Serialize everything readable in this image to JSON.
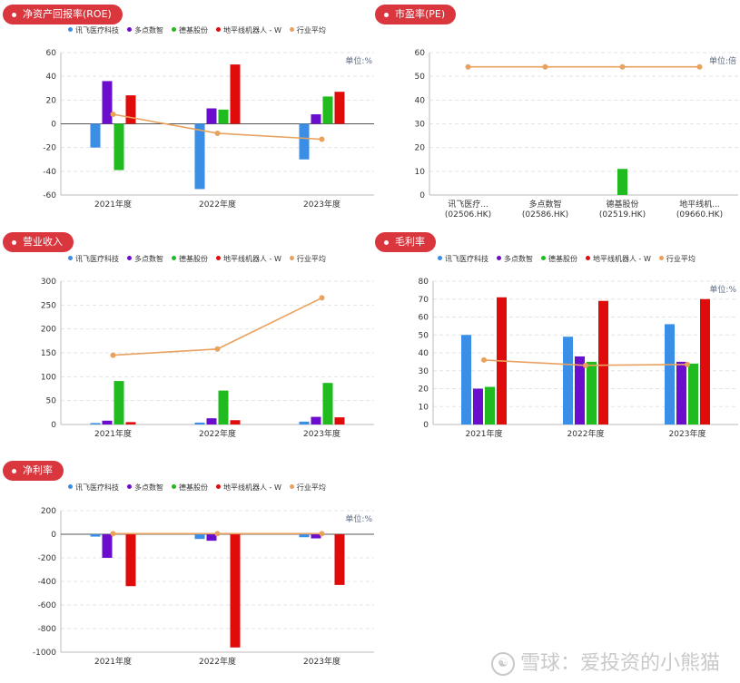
{
  "legend_names": [
    "讯飞医疗科技",
    "多点数智",
    "德基股份",
    "地平线机器人 - W",
    "行业平均"
  ],
  "colors": {
    "xunfei": "#3a8ee6",
    "duodian": "#6a0dcc",
    "deji": "#1fbb1f",
    "dipingxian": "#e00b0b",
    "industry_avg": "#e8a25e",
    "badge": "#d9363e"
  },
  "watermark": "雪球：爱投资的小熊猫",
  "watermark_icon": "xueqiu-logo-icon",
  "panels": {
    "roe": {
      "title": "净资产回报率(ROE)",
      "unit": "单位:%",
      "chart_data": {
        "type": "bar",
        "categories": [
          "2021年度",
          "2022年度",
          "2023年度"
        ],
        "series": [
          {
            "name": "讯飞医疗科技",
            "values": [
              -20,
              -55,
              -30
            ]
          },
          {
            "name": "多点数智",
            "values": [
              36,
              13,
              8
            ]
          },
          {
            "name": "德基股份",
            "values": [
              -39,
              12,
              23
            ]
          },
          {
            "name": "地平线机器人 - W",
            "values": [
              24,
              50,
              27
            ]
          }
        ],
        "line": {
          "name": "行业平均",
          "values": [
            8,
            -8,
            -13
          ]
        },
        "ylim": [
          -60,
          60
        ],
        "yticks": [
          -60,
          -40,
          -20,
          0,
          20,
          40,
          60
        ],
        "grid": true,
        "legend": "top"
      }
    },
    "pe": {
      "title": "市盈率(PE)",
      "unit": "单位:倍",
      "chart_data": {
        "type": "bar",
        "categories": [
          "讯飞医疗...",
          "多点数智",
          "德基股份",
          "地平线机..."
        ],
        "category_codes": [
          "(02506.HK)",
          "(02586.HK)",
          "(02519.HK)",
          "(09660.HK)"
        ],
        "values": [
          0,
          0,
          11,
          0
        ],
        "line": {
          "name": "行业平均",
          "values": [
            54,
            54,
            54,
            54
          ]
        },
        "ylim": [
          0,
          60
        ],
        "yticks": [
          0,
          10,
          20,
          30,
          40,
          50,
          60
        ],
        "grid": true
      }
    },
    "revenue": {
      "title": "营业收入",
      "chart_data": {
        "type": "bar",
        "categories": [
          "2021年度",
          "2022年度",
          "2023年度"
        ],
        "series": [
          {
            "name": "讯飞医疗科技",
            "values": [
              3,
              4,
              6
            ]
          },
          {
            "name": "多点数智",
            "values": [
              8,
              13,
              16
            ]
          },
          {
            "name": "德基股份",
            "values": [
              91,
              71,
              87
            ]
          },
          {
            "name": "地平线机器人 - W",
            "values": [
              5,
              9,
              15
            ]
          }
        ],
        "line": {
          "name": "行业平均",
          "values": [
            145,
            158,
            265
          ]
        },
        "ylim": [
          0,
          300
        ],
        "yticks": [
          0,
          50,
          100,
          150,
          200,
          250,
          300
        ],
        "grid": true,
        "legend": "top"
      }
    },
    "gross": {
      "title": "毛利率",
      "unit": "单位:%",
      "chart_data": {
        "type": "bar",
        "categories": [
          "2021年度",
          "2022年度",
          "2023年度"
        ],
        "series": [
          {
            "name": "讯飞医疗科技",
            "values": [
              50,
              49,
              56
            ]
          },
          {
            "name": "多点数智",
            "values": [
              20,
              38,
              35
            ]
          },
          {
            "name": "德基股份",
            "values": [
              21,
              35,
              34
            ]
          },
          {
            "name": "地平线机器人 - W",
            "values": [
              71,
              69,
              70
            ]
          }
        ],
        "line": {
          "name": "行业平均",
          "values": [
            36,
            33,
            33.5
          ]
        },
        "ylim": [
          0,
          80
        ],
        "yticks": [
          0,
          10,
          20,
          30,
          40,
          50,
          60,
          70,
          80
        ],
        "grid": true,
        "legend": "top"
      }
    },
    "net": {
      "title": "净利率",
      "unit": "单位:%",
      "chart_data": {
        "type": "bar",
        "categories": [
          "2021年度",
          "2022年度",
          "2023年度"
        ],
        "series": [
          {
            "name": "讯飞医疗科技",
            "values": [
              -20,
              -40,
              -25
            ]
          },
          {
            "name": "多点数智",
            "values": [
              -200,
              -55,
              -35
            ]
          },
          {
            "name": "德基股份",
            "values": [
              0,
              0,
              0
            ]
          },
          {
            "name": "地平线机器人 - W",
            "values": [
              -440,
              -960,
              -430
            ]
          }
        ],
        "line": {
          "name": "行业平均",
          "values": [
            5,
            5,
            5
          ]
        },
        "ylim": [
          -1000,
          200
        ],
        "yticks": [
          -1000,
          -800,
          -600,
          -400,
          -200,
          0,
          200
        ],
        "grid": true,
        "legend": "top"
      }
    }
  }
}
